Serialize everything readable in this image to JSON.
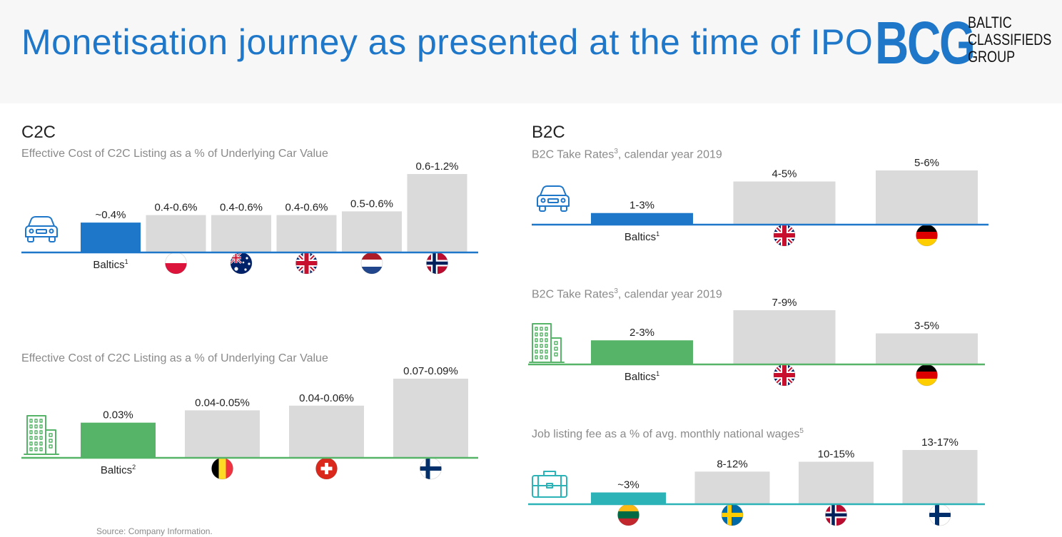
{
  "title": "Monetisation journey as presented at the time of IPO",
  "logo": {
    "mark": "BCG",
    "lines": [
      "BALTIC",
      "CLASSIFIEDS",
      "GROUP"
    ]
  },
  "c2c": {
    "heading": "C2C"
  },
  "b2c": {
    "heading": "B2C"
  },
  "source": "Source: Company Information.",
  "colors": {
    "blue": "#1f77c9",
    "green": "#55b467",
    "teal": "#2bb3b8",
    "grey": "#dadada"
  },
  "chart_data": [
    {
      "type": "bar",
      "title": "Effective Cost of C2C Listing as a % of Underlying Car Value",
      "icon": "car-icon",
      "accent": "blue",
      "categories": [
        "Baltics",
        "Poland",
        "Australia",
        "United Kingdom",
        "Netherlands",
        "Norway"
      ],
      "category_labels": [
        "Baltics",
        "",
        "",
        "",
        "",
        ""
      ],
      "footnotes": [
        "1",
        "",
        "",
        "",
        "",
        ""
      ],
      "flags": [
        "",
        "poland-flag-icon",
        "australia-flag-icon",
        "uk-flag-icon",
        "netherlands-flag-icon",
        "norway-flag-icon"
      ],
      "labels": [
        "~0.4%",
        "0.4-0.6%",
        "0.4-0.6%",
        "0.4-0.6%",
        "0.5-0.6%",
        "0.6-1.2%"
      ],
      "values": [
        0.4,
        0.5,
        0.5,
        0.5,
        0.55,
        1.05
      ],
      "ylim": [
        0,
        1.05
      ]
    },
    {
      "type": "bar",
      "title": "Effective Cost of C2C Listing as a % of Underlying Car Value",
      "icon": "building-icon",
      "accent": "green",
      "categories": [
        "Baltics",
        "Belgium",
        "Switzerland",
        "Finland"
      ],
      "category_labels": [
        "Baltics",
        "",
        "",
        ""
      ],
      "footnotes": [
        "2",
        "",
        "",
        ""
      ],
      "flags": [
        "",
        "belgium-flag-icon",
        "switzerland-flag-icon",
        "finland-flag-icon"
      ],
      "labels": [
        "0.03%",
        "0.04-0.05%",
        "0.04-0.06%",
        "0.07-0.09%"
      ],
      "values": [
        0.03,
        0.0405,
        0.0445,
        0.0675
      ],
      "ylim": [
        0,
        0.0675
      ]
    },
    {
      "type": "bar",
      "title": "B2C Take Rates",
      "title_sup": "3",
      "title_rest": ", calendar year 2019",
      "icon": "car-icon",
      "accent": "blue",
      "categories": [
        "Baltics",
        "United Kingdom",
        "Germany"
      ],
      "category_labels": [
        "Baltics",
        "",
        ""
      ],
      "footnotes": [
        "1",
        "",
        ""
      ],
      "flags": [
        "",
        "uk-flag-icon",
        "germany-flag-icon"
      ],
      "labels": [
        "1-3%",
        "4-5%",
        "5-6%"
      ],
      "values": [
        1.05,
        3.9,
        4.9
      ],
      "ylim": [
        0,
        4.9
      ]
    },
    {
      "type": "bar",
      "title": "B2C Take Rates",
      "title_sup": "3",
      "title_rest": ", calendar year 2019",
      "icon": "building-icon",
      "accent": "green",
      "categories": [
        "Baltics",
        "United Kingdom",
        "Germany"
      ],
      "category_labels": [
        "Baltics",
        "",
        ""
      ],
      "footnotes": [
        "1",
        "",
        ""
      ],
      "flags": [
        "",
        "uk-flag-icon",
        "germany-flag-icon"
      ],
      "labels": [
        "2-3%",
        "7-9%",
        "3-5%"
      ],
      "values": [
        2.6,
        5.85,
        3.35
      ],
      "ylim": [
        0,
        5.85
      ]
    },
    {
      "type": "bar",
      "title": "Job listing fee as a % of avg. monthly national wages",
      "title_sup": "5",
      "title_rest": "",
      "icon": "briefcase-icon",
      "accent": "teal",
      "categories": [
        "Lithuania",
        "Sweden",
        "Norway",
        "Finland"
      ],
      "category_labels": [
        "",
        "",
        "",
        ""
      ],
      "footnotes": [
        "",
        "",
        "",
        ""
      ],
      "flags": [
        "lithuania-flag-icon",
        "sweden-flag-icon",
        "norway-flag-icon",
        "finland-flag-icon"
      ],
      "labels": [
        "~3%",
        "8-12%",
        "10-15%",
        "13-17%"
      ],
      "values": [
        3.1,
        8.6,
        11.2,
        14.3
      ],
      "ylim": [
        0,
        14.3
      ]
    }
  ]
}
